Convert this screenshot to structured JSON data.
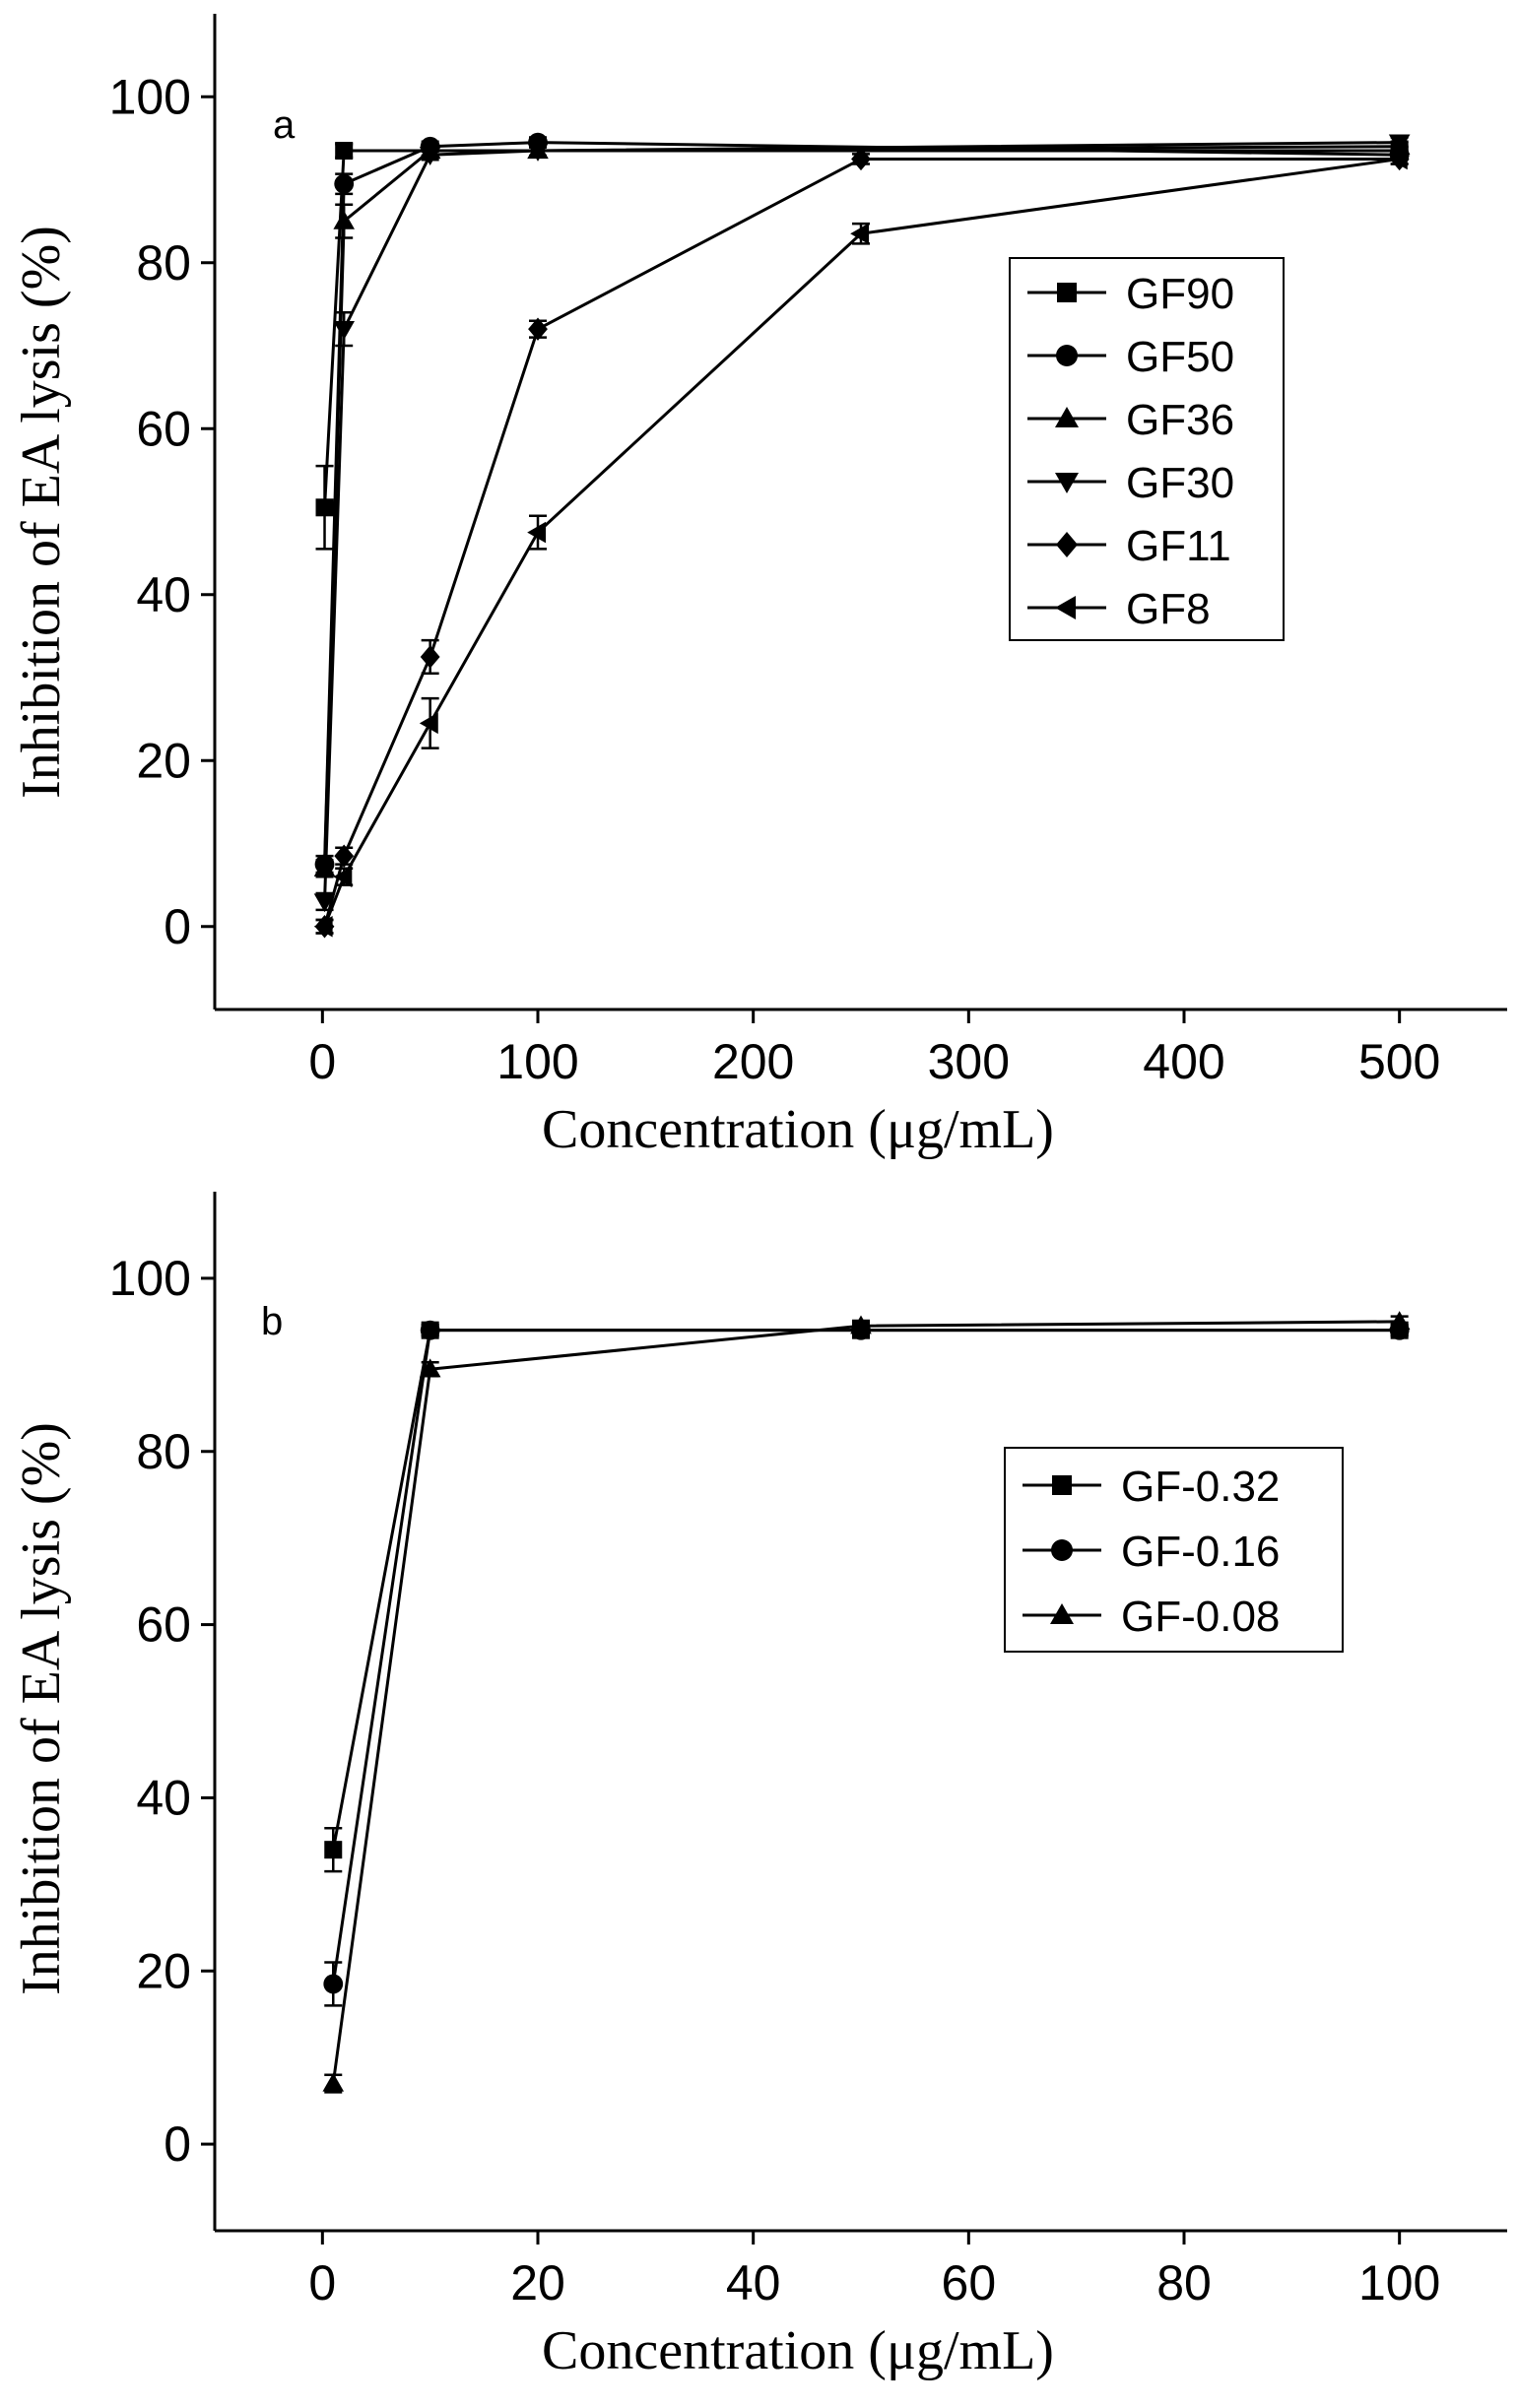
{
  "chart_data": [
    {
      "type": "line",
      "panel_label": "a",
      "xlabel": "Concentration (μg/mL)",
      "ylabel": "Inhibition of EA lysis (%)",
      "xlim": [
        -50,
        550
      ],
      "ylim": [
        -10,
        110
      ],
      "xticks": [
        0,
        100,
        200,
        300,
        400,
        500
      ],
      "yticks": [
        0,
        20,
        40,
        60,
        80,
        100
      ],
      "legend_position": "right-middle",
      "series": [
        {
          "name": "GF90",
          "marker": "square",
          "x": [
            1,
            10,
            500
          ],
          "y": [
            50.5,
            93.5,
            93.5
          ],
          "err": [
            5,
            0.8,
            0.5
          ]
        },
        {
          "name": "GF50",
          "marker": "circle",
          "x": [
            1,
            10,
            50,
            100,
            500
          ],
          "y": [
            7.5,
            89.5,
            94,
            94.5,
            93
          ],
          "err": [
            1,
            1.2,
            0.6,
            0.6,
            0.6
          ]
        },
        {
          "name": "GF36",
          "marker": "triangle-up",
          "x": [
            1,
            10,
            50,
            100,
            500
          ],
          "y": [
            7,
            85,
            93.5,
            93.5,
            94
          ],
          "err": [
            1,
            2,
            0.6,
            0.6,
            0.6
          ]
        },
        {
          "name": "GF30",
          "marker": "triangle-down",
          "x": [
            1,
            10,
            50,
            100,
            500
          ],
          "y": [
            3,
            72,
            93,
            93.5,
            94.5
          ],
          "err": [
            1,
            2,
            0.6,
            0.6,
            0.6
          ]
        },
        {
          "name": "GF11",
          "marker": "diamond",
          "x": [
            1,
            10,
            50,
            100,
            250,
            500
          ],
          "y": [
            0,
            8.5,
            32.5,
            72,
            92.5,
            92.5
          ],
          "err": [
            0.8,
            1,
            2,
            1,
            0.6,
            0.6
          ]
        },
        {
          "name": "GF8",
          "marker": "triangle-left",
          "x": [
            1,
            10,
            50,
            100,
            250,
            500
          ],
          "y": [
            0,
            6,
            24.5,
            47.5,
            83.5,
            92.5
          ],
          "err": [
            0.8,
            1,
            3,
            2,
            1.2,
            0.6
          ]
        }
      ]
    },
    {
      "type": "line",
      "panel_label": "b",
      "xlabel": "Concentration (μg/mL)",
      "ylabel": "Inhibition of EA lysis (%)",
      "xlim": [
        -10,
        110
      ],
      "ylim": [
        -10,
        110
      ],
      "xticks": [
        0,
        20,
        40,
        60,
        80,
        100
      ],
      "yticks": [
        0,
        20,
        40,
        60,
        80,
        100
      ],
      "legend_position": "right-upper",
      "series": [
        {
          "name": "GF-0.32",
          "marker": "square",
          "x": [
            1,
            10,
            50,
            100
          ],
          "y": [
            34,
            94,
            94,
            94
          ],
          "err": [
            2.5,
            0.6,
            0.6,
            0.6
          ]
        },
        {
          "name": "GF-0.16",
          "marker": "circle",
          "x": [
            1,
            10,
            50,
            100
          ],
          "y": [
            18.5,
            94,
            94,
            94
          ],
          "err": [
            2.5,
            0.6,
            0.6,
            0.6
          ]
        },
        {
          "name": "GF-0.08",
          "marker": "triangle-up",
          "x": [
            1,
            10,
            50,
            100
          ],
          "y": [
            7,
            89.5,
            94.5,
            95
          ],
          "err": [
            1,
            0.8,
            0.6,
            0.6
          ]
        }
      ]
    }
  ]
}
